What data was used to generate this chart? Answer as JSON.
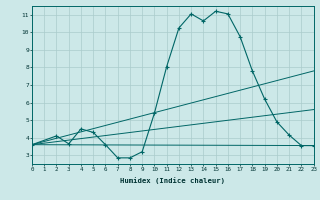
{
  "xlabel": "Humidex (Indice chaleur)",
  "xlim": [
    0,
    23
  ],
  "ylim": [
    2.5,
    11.5
  ],
  "xticks": [
    0,
    1,
    2,
    3,
    4,
    5,
    6,
    7,
    8,
    9,
    10,
    11,
    12,
    13,
    14,
    15,
    16,
    17,
    18,
    19,
    20,
    21,
    22,
    23
  ],
  "yticks": [
    3,
    4,
    5,
    6,
    7,
    8,
    9,
    10,
    11
  ],
  "background_color": "#cce8e8",
  "grid_color": "#aacccc",
  "line_color": "#006666",
  "main_curve": {
    "x": [
      0,
      2,
      3,
      4,
      5,
      6,
      7,
      8,
      9,
      10,
      11,
      12,
      13,
      14,
      15,
      16,
      17,
      18,
      19,
      20,
      21,
      22,
      23
    ],
    "y": [
      3.6,
      4.1,
      3.65,
      4.5,
      4.3,
      3.6,
      2.85,
      2.85,
      3.2,
      5.4,
      8.05,
      10.25,
      11.05,
      10.65,
      11.2,
      11.05,
      9.75,
      7.8,
      6.2,
      4.9,
      4.15,
      3.55,
      3.55
    ]
  },
  "straight_lines": [
    {
      "x": [
        0,
        23
      ],
      "y": [
        3.6,
        7.8
      ]
    },
    {
      "x": [
        0,
        23
      ],
      "y": [
        3.6,
        5.6
      ]
    },
    {
      "x": [
        0,
        23
      ],
      "y": [
        3.6,
        3.55
      ]
    }
  ]
}
